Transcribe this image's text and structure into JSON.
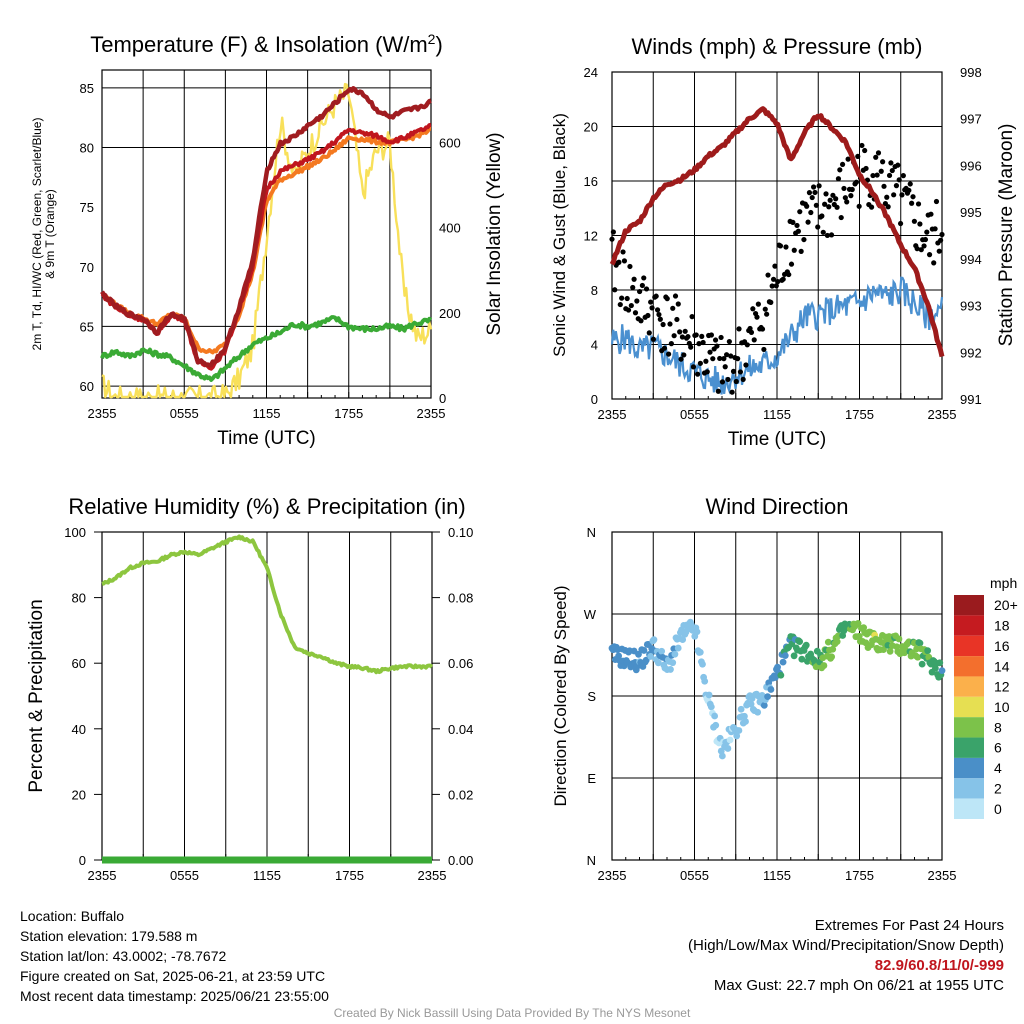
{
  "colors": {
    "red": "#c0161e",
    "green": "#3aaa35",
    "orange": "#f47920",
    "yellow": "#f8e05a",
    "maroon": "#9e1b1b",
    "sonic": "#4a90d0",
    "gust": "#000000",
    "rh": "#8dc63f",
    "precip": "#3aaa35"
  },
  "chart_data": [
    {
      "type": "line",
      "title": "Temperature (F) & Insolation (W/m²)",
      "xlabel": "Time (UTC)",
      "ylabel": "2m T, T_d, HI/WC (Red, Green, Scarlet/Blue) & 9m T (Orange)",
      "ylabel_right": "Solar Insolation (Yellow)",
      "x_ticks": [
        "2355",
        "0555",
        "1155",
        "1755",
        "2355"
      ],
      "ylim": [
        59,
        86.5
      ],
      "y_ticks": [
        60,
        65,
        70,
        75,
        80,
        85
      ],
      "ylim_right": [
        0,
        770
      ],
      "y_ticks_right": [
        0,
        200,
        400,
        600
      ],
      "x": [
        0,
        1,
        2,
        3,
        4,
        5,
        6,
        7,
        8,
        9,
        10,
        11,
        12,
        13,
        14,
        15,
        16,
        17,
        18,
        19,
        20,
        21,
        22,
        23,
        24
      ],
      "series": [
        {
          "name": "2m T",
          "axis": "left",
          "values": [
            67.7,
            66.6,
            65.9,
            65.6,
            64.4,
            65.9,
            65.6,
            62.0,
            61.6,
            63.0,
            66.4,
            70.0,
            76.5,
            78.0,
            78.5,
            79.0,
            79.6,
            80.5,
            81.5,
            81.2,
            81.0,
            80.5,
            80.8,
            81.3,
            81.8
          ]
        },
        {
          "name": "9m T",
          "axis": "left",
          "values": [
            67.7,
            66.8,
            66.1,
            65.7,
            65.2,
            66.0,
            65.7,
            63.2,
            62.8,
            63.5,
            66.0,
            69.5,
            75.5,
            77.3,
            77.8,
            78.4,
            79.0,
            79.8,
            80.8,
            80.7,
            80.5,
            80.4,
            80.6,
            81.0,
            81.5
          ]
        },
        {
          "name": "HI/WC",
          "axis": "left",
          "values": [
            67.8,
            66.7,
            66.0,
            65.7,
            64.5,
            66.0,
            65.7,
            62.1,
            61.8,
            63.2,
            66.6,
            70.5,
            78.0,
            80.3,
            80.9,
            81.8,
            82.6,
            83.7,
            84.9,
            84.6,
            83.2,
            82.5,
            83.0,
            83.3,
            83.8
          ]
        },
        {
          "name": "Dew Point",
          "axis": "left",
          "values": [
            62.5,
            62.9,
            62.5,
            63.0,
            62.7,
            62.4,
            61.7,
            61.0,
            60.5,
            61.5,
            62.5,
            63.5,
            64.0,
            64.5,
            65.2,
            65.0,
            65.3,
            65.7,
            65.0,
            64.8,
            64.8,
            65.0,
            64.8,
            65.3,
            65.5
          ]
        },
        {
          "name": "Solar",
          "axis": "right",
          "values": [
            30,
            0,
            0,
            0,
            0,
            0,
            0,
            0,
            0,
            5,
            45,
            120,
            380,
            650,
            520,
            580,
            640,
            690,
            720,
            480,
            580,
            600,
            250,
            140,
            160
          ]
        }
      ]
    },
    {
      "type": "line",
      "title": "Winds (mph) & Pressure (mb)",
      "xlabel": "Time (UTC)",
      "ylabel": "Sonic Wind & Gust (Blue, Black)",
      "ylabel_right": "Station Pressure (Maroon)",
      "x_ticks": [
        "2355",
        "0555",
        "1155",
        "1755",
        "2355"
      ],
      "ylim": [
        0,
        24
      ],
      "y_ticks": [
        0,
        4,
        8,
        12,
        16,
        20,
        24
      ],
      "ylim_right": [
        991,
        998
      ],
      "y_ticks_right": [
        991,
        992,
        993,
        994,
        995,
        996,
        997,
        998
      ],
      "x": [
        0,
        1,
        2,
        3,
        4,
        5,
        6,
        7,
        8,
        9,
        10,
        11,
        12,
        13,
        14,
        15,
        16,
        17,
        18,
        19,
        20,
        21,
        22,
        23,
        24
      ],
      "series": [
        {
          "name": "Sonic Wind",
          "axis": "left",
          "values": [
            4.2,
            4.5,
            3.5,
            3.8,
            3.2,
            2.5,
            2.0,
            1.5,
            1.2,
            1.8,
            2.2,
            2.5,
            3.2,
            4.5,
            6.0,
            6.2,
            6.5,
            6.8,
            7.0,
            7.8,
            7.5,
            8.0,
            7.0,
            6.0,
            6.5
          ]
        },
        {
          "name": "Gust",
          "axis": "left",
          "values": [
            10.0,
            8.5,
            7.0,
            6.5,
            5.5,
            4.8,
            4.0,
            3.0,
            2.0,
            2.8,
            4.2,
            6.0,
            9.0,
            12.0,
            13.0,
            13.5,
            14.0,
            15.5,
            16.5,
            16.5,
            15.5,
            14.5,
            13.0,
            11.5,
            12.5
          ]
        },
        {
          "name": "Pressure",
          "axis": "right",
          "values": [
            993.9,
            994.6,
            994.8,
            995.3,
            995.6,
            995.7,
            995.9,
            996.2,
            996.4,
            996.7,
            997.0,
            997.2,
            996.9,
            996.1,
            996.7,
            997.1,
            996.8,
            996.5,
            995.8,
            995.4,
            994.9,
            994.3,
            993.8,
            993.0,
            991.9
          ]
        }
      ]
    },
    {
      "type": "line",
      "title": "Relative Humidity (%) & Precipitation (in)",
      "ylabel": "Percent & Precipitation",
      "x_ticks": [
        "2355",
        "0555",
        "1155",
        "1755",
        "2355"
      ],
      "ylim": [
        0,
        100
      ],
      "y_ticks": [
        0,
        20,
        40,
        60,
        80,
        100
      ],
      "ylim_right": [
        0,
        0.1
      ],
      "y_ticks_right": [
        "0.00",
        "0.02",
        "0.04",
        "0.06",
        "0.08",
        "0.10"
      ],
      "x": [
        0,
        1,
        2,
        3,
        4,
        5,
        6,
        7,
        8,
        9,
        10,
        11,
        12,
        13,
        14,
        15,
        16,
        17,
        18,
        19,
        20,
        21,
        22,
        23,
        24
      ],
      "series": [
        {
          "name": "RH",
          "axis": "left",
          "values": [
            84,
            86,
            89,
            90.5,
            91,
            93,
            94,
            93,
            95,
            97,
            98.5,
            97,
            89,
            75,
            65,
            63,
            62,
            60,
            59,
            58.5,
            57.5,
            58.5,
            59,
            59,
            59
          ]
        },
        {
          "name": "Precipitation",
          "axis": "right",
          "values": [
            0,
            0,
            0,
            0,
            0,
            0,
            0,
            0,
            0,
            0,
            0,
            0,
            0,
            0,
            0,
            0,
            0,
            0,
            0,
            0,
            0,
            0,
            0,
            0,
            0
          ]
        }
      ]
    },
    {
      "type": "scatter",
      "title": "Wind Direction",
      "ylabel": "Direction (Colored By Speed)",
      "x_ticks": [
        "2355",
        "0555",
        "1155",
        "1755",
        "2355"
      ],
      "y_ticks": [
        "N",
        "E",
        "S",
        "W",
        "N"
      ],
      "ylim": [
        0,
        360
      ],
      "colorbar_title": "mph",
      "colorbar_labels": [
        "0",
        "2",
        "4",
        "6",
        "8",
        "10",
        "12",
        "14",
        "16",
        "18",
        "20+"
      ],
      "colorbar_colors": [
        "#bde6f7",
        "#86c3e8",
        "#4a8fc8",
        "#3aa36a",
        "#7cc24a",
        "#e6df52",
        "#fbb04b",
        "#f36f2d",
        "#e83426",
        "#c51b20",
        "#9a1b1e"
      ],
      "x": [
        0,
        1,
        2,
        3,
        4,
        5,
        6,
        7,
        8,
        9,
        10,
        11,
        12,
        13,
        14,
        15,
        16,
        17,
        18,
        19,
        20,
        21,
        22,
        23,
        24
      ],
      "series": [
        {
          "name": "Direction",
          "values": [
            225,
            222,
            218,
            235,
            210,
            245,
            255,
            175,
            120,
            145,
            170,
            175,
            205,
            235,
            230,
            218,
            232,
            255,
            250,
            240,
            238,
            235,
            232,
            220,
            208
          ]
        },
        {
          "name": "Speed",
          "values": [
            4.0,
            4.2,
            3.5,
            3.2,
            2.8,
            2.2,
            2.0,
            1.4,
            1.2,
            1.6,
            2.2,
            2.4,
            4.5,
            5.5,
            6.0,
            7.0,
            7.5,
            6.5,
            8.0,
            8.5,
            7.5,
            8.0,
            7.0,
            6.5,
            5.0
          ]
        }
      ]
    }
  ],
  "footer": {
    "location": "Location: Buffalo",
    "elevation": "Station elevation: 179.588 m",
    "latlon": "Station lat/lon: 43.0002; -78.7672",
    "created": "Figure created on Sat, 2025-06-21, at 23:59 UTC",
    "recent": "Most recent data timestamp: 2025/06/21 23:55:00",
    "extremes_title": "Extremes For Past 24 Hours",
    "extremes_legend": "(High/Low/Max Wind/Precipitation/Snow Depth)",
    "extremes_values": "82.9/60.8/11/0/-999",
    "max_gust": "Max Gust: 22.7 mph On 06/21 at 1955 UTC",
    "credit": "Created By Nick Bassill Using Data Provided By The NYS Mesonet"
  }
}
